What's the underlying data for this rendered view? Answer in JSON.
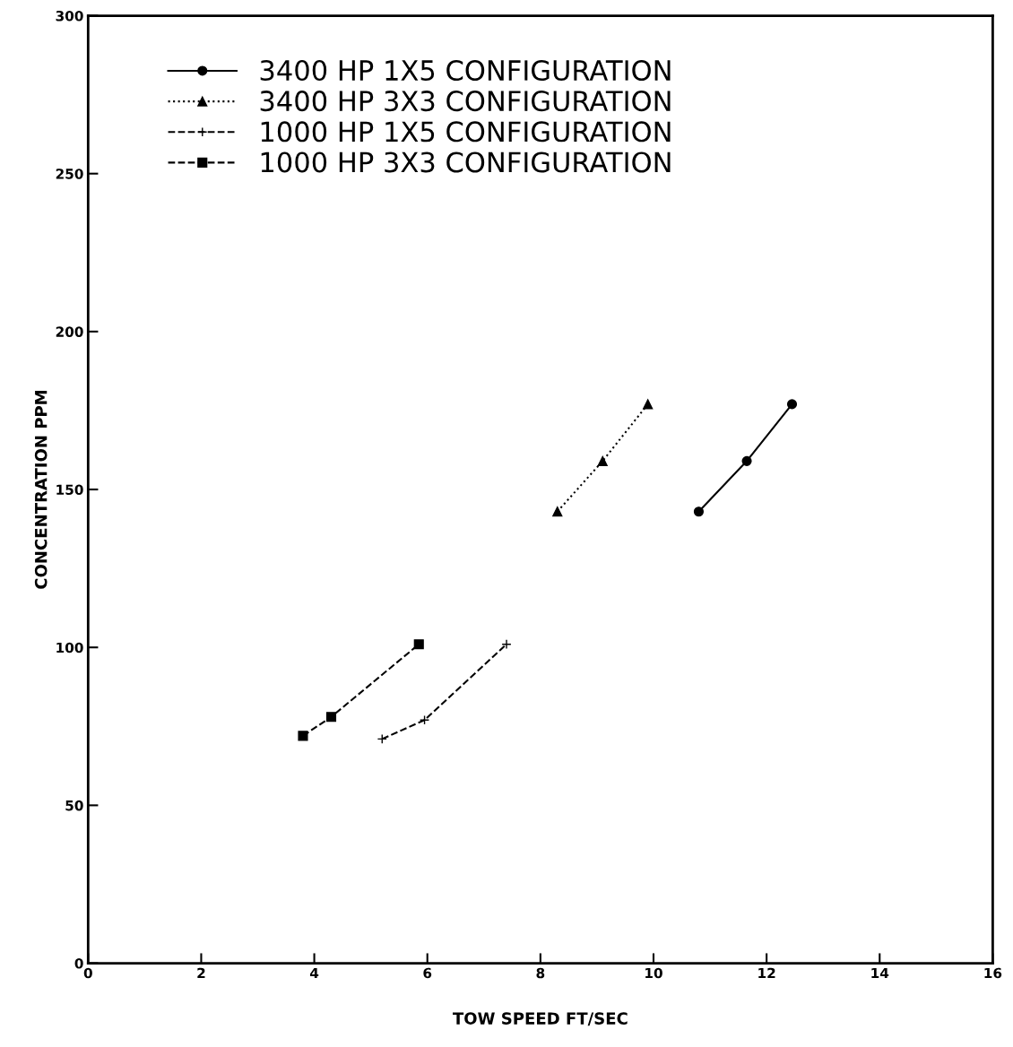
{
  "chart_data": {
    "type": "line",
    "xlabel": "TOW SPEED FT/SEC",
    "ylabel": "CONCENTRATION PPM",
    "xlim": [
      0,
      16
    ],
    "xticks": [
      0,
      2,
      4,
      6,
      8,
      10,
      12,
      14,
      16
    ],
    "ylim": [
      0,
      300
    ],
    "yticks": [
      0,
      50,
      100,
      150,
      200,
      250,
      300
    ],
    "grid": false,
    "legend": "top left",
    "series": [
      {
        "name": "3400 HP 1X5 CONFIGURATION",
        "color": "#000000",
        "marker": "circle",
        "line_style": "solid",
        "x": [
          10.8,
          11.65,
          12.45
        ],
        "values": [
          143,
          159,
          177
        ]
      },
      {
        "name": "3400 HP 3X3 CONFIGURATION",
        "color": "#000000",
        "marker": "triangle",
        "line_style": "dotted",
        "x": [
          8.3,
          9.1,
          9.9
        ],
        "values": [
          143,
          159,
          177
        ]
      },
      {
        "name": "1000 HP 1X5 CONFIGURATION",
        "color": "#000000",
        "marker": "cross",
        "line_style": "dashed",
        "x": [
          5.2,
          5.95,
          7.4
        ],
        "values": [
          71,
          77,
          101
        ]
      },
      {
        "name": "1000 HP 3X3 CONFIGURATION",
        "color": "#000000",
        "marker": "square",
        "line_style": "dashed",
        "x": [
          3.8,
          4.3,
          5.85
        ],
        "values": [
          72,
          78,
          101
        ]
      }
    ]
  }
}
